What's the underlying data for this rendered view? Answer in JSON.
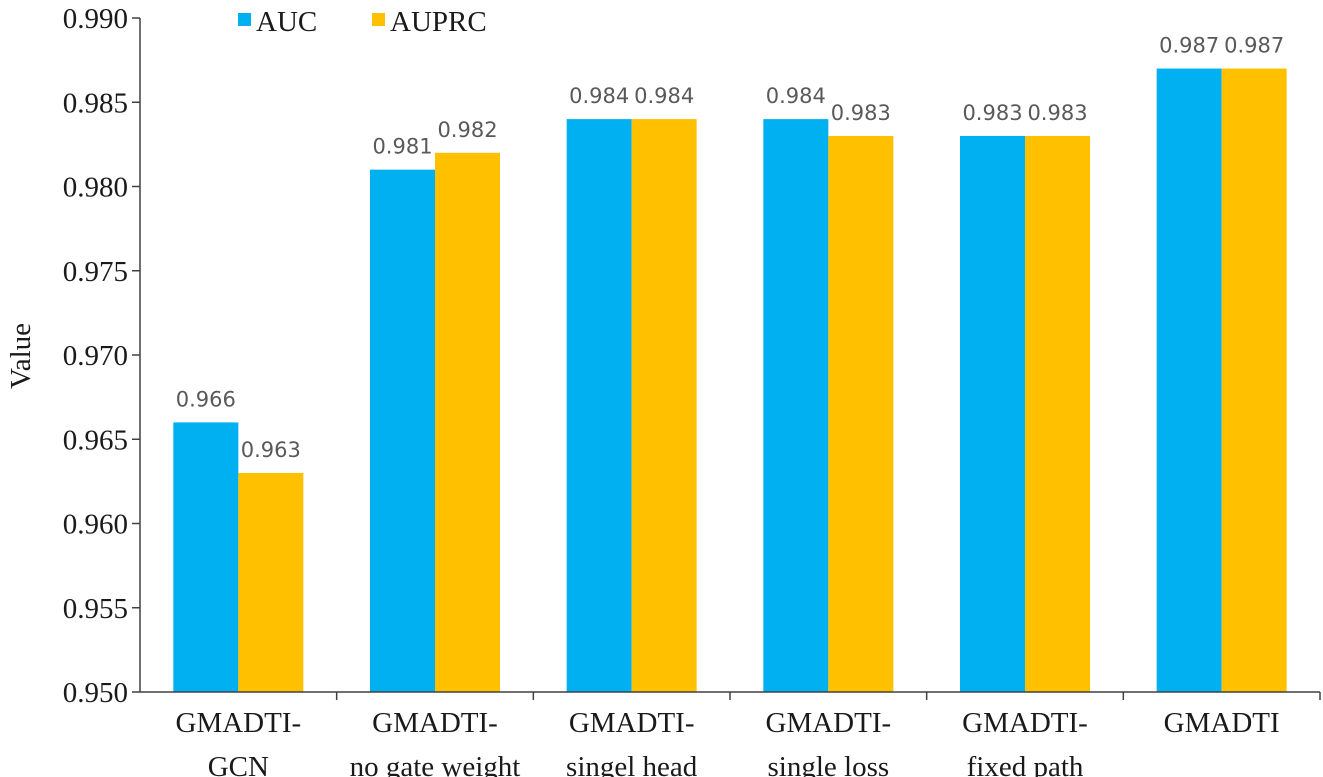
{
  "chart_data": {
    "type": "bar",
    "title": "",
    "xlabel": "",
    "ylabel": "Value",
    "ylim": [
      0.95,
      0.99
    ],
    "yticks": [
      "0.950",
      "0.955",
      "0.960",
      "0.965",
      "0.970",
      "0.975",
      "0.980",
      "0.985",
      "0.990"
    ],
    "categories": [
      [
        "GMADTI-",
        "GCN"
      ],
      [
        "GMADTI-",
        "no gate weight"
      ],
      [
        "GMADTI-",
        "singel head"
      ],
      [
        "GMADTI-",
        "single loss"
      ],
      [
        "GMADTI-",
        "fixed path"
      ],
      [
        "GMADTI"
      ]
    ],
    "series": [
      {
        "name": "AUC",
        "color": "#00b0f0",
        "values": [
          0.966,
          0.981,
          0.984,
          0.984,
          0.983,
          0.987
        ]
      },
      {
        "name": "AUPRC",
        "color": "#ffc000",
        "values": [
          0.963,
          0.982,
          0.984,
          0.983,
          0.983,
          0.987
        ]
      }
    ],
    "legend": {
      "position": "top-left",
      "entries": [
        "AUC",
        "AUPRC"
      ]
    },
    "grid": false
  }
}
